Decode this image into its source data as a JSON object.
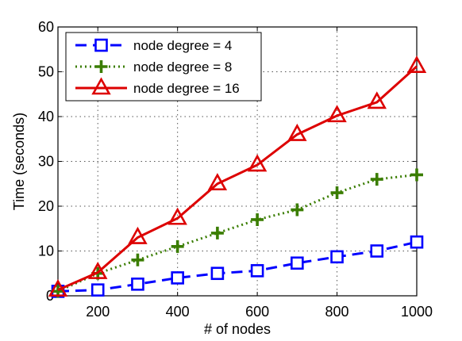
{
  "chart_data": {
    "type": "line",
    "title": "",
    "xlabel": "# of nodes",
    "ylabel": "Time (seconds)",
    "xlim": [
      100,
      1000
    ],
    "ylim": [
      0,
      60
    ],
    "xticks": [
      200,
      400,
      600,
      800,
      1000
    ],
    "yticks": [
      0,
      10,
      20,
      30,
      40,
      50,
      60
    ],
    "grid": true,
    "legend_position": "top-left",
    "x": [
      100,
      200,
      300,
      400,
      500,
      600,
      700,
      800,
      900,
      1000
    ],
    "series": [
      {
        "name": "node degree = 4",
        "values": [
          1,
          1.3,
          2.6,
          4,
          5,
          5.6,
          7.3,
          8.7,
          10,
          12
        ],
        "color": "#0000ff",
        "line_style": "dashed",
        "marker": "square"
      },
      {
        "name": "node degree = 8",
        "values": [
          1,
          5,
          8,
          11,
          14,
          17,
          19.2,
          23,
          26,
          27
        ],
        "color": "#3a7d00",
        "line_style": "dotted",
        "marker": "plus"
      },
      {
        "name": "node degree = 16",
        "values": [
          1.3,
          5.2,
          13,
          17.3,
          25,
          29.2,
          36,
          40.2,
          43.2,
          51.2
        ],
        "color": "#dd0000",
        "line_style": "solid",
        "marker": "triangle"
      }
    ]
  }
}
